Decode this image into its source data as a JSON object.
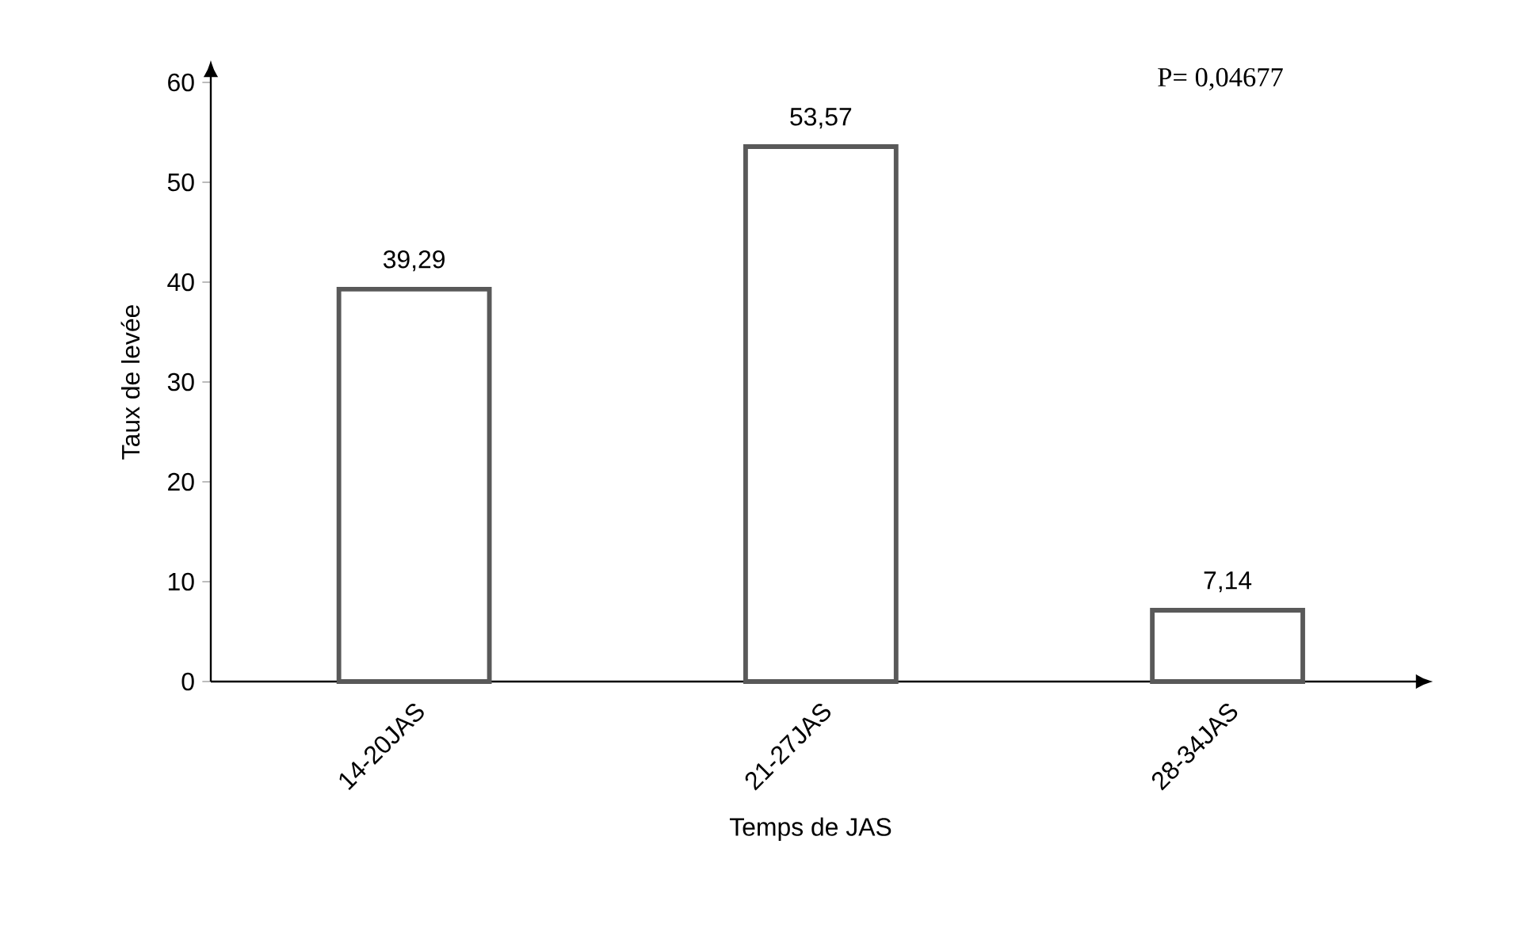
{
  "chart_data": {
    "type": "bar",
    "categories": [
      "14-20JAS",
      "21-27JAS",
      "28-34JAS"
    ],
    "values": [
      39.29,
      53.57,
      7.14
    ],
    "value_labels": [
      "39,29",
      "53,57",
      "7,14"
    ],
    "color": "#595959",
    "xlabel": "Temps de JAS",
    "ylabel": "Taux de levée",
    "ylim": [
      0,
      60
    ],
    "yticks": [
      0,
      10,
      20,
      30,
      40,
      50,
      60
    ],
    "annotations": [
      "P= 0,04677"
    ],
    "grid": false
  }
}
